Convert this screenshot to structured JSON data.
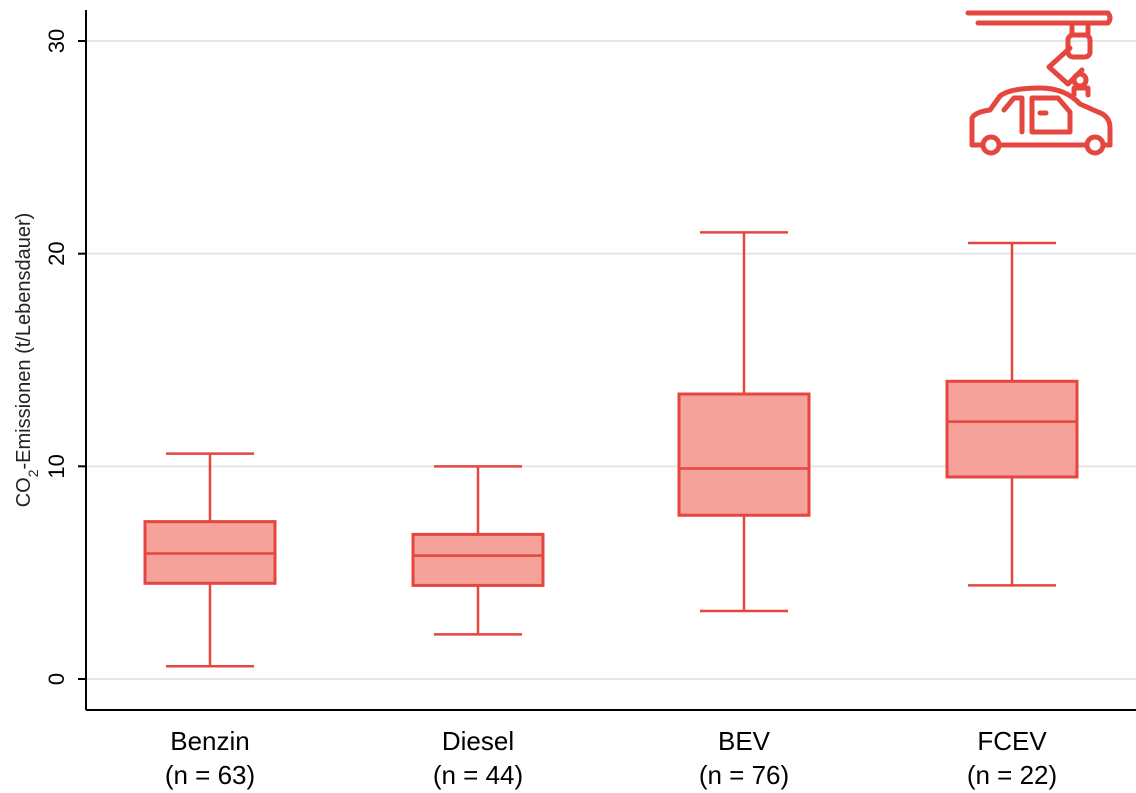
{
  "chart_data": {
    "type": "boxplot",
    "ylabel": {
      "prefix": "CO",
      "subscript": "2",
      "suffix": "-Emissionen (t/Lebensdauer)"
    },
    "ylim": [
      0,
      30
    ],
    "yticks": [
      "0",
      "10",
      "20",
      "30"
    ],
    "grid": true,
    "categories": [
      {
        "name": "Benzin",
        "count": "(n = 63)",
        "whisker_low": 0.6,
        "q1": 4.5,
        "median": 5.9,
        "q3": 7.4,
        "whisker_high": 10.6
      },
      {
        "name": "Diesel",
        "count": "(n = 44)",
        "whisker_low": 2.1,
        "q1": 4.4,
        "median": 5.8,
        "q3": 6.8,
        "whisker_high": 10.0
      },
      {
        "name": "BEV",
        "count": "(n = 76)",
        "whisker_low": 3.2,
        "q1": 7.7,
        "median": 9.9,
        "q3": 13.4,
        "whisker_high": 21.0
      },
      {
        "name": "FCEV",
        "count": "(n = 22)",
        "whisker_low": 4.4,
        "q1": 9.5,
        "median": 12.1,
        "q3": 14.0,
        "whisker_high": 20.5
      }
    ],
    "colors": {
      "box_fill": "#f4a29a",
      "stroke": "#e5463f",
      "grid": "#e6e6e6",
      "axis": "#000000",
      "icon": "#e5463f"
    }
  },
  "decor": {
    "icon": "robot-arm-car-assembly-icon"
  }
}
